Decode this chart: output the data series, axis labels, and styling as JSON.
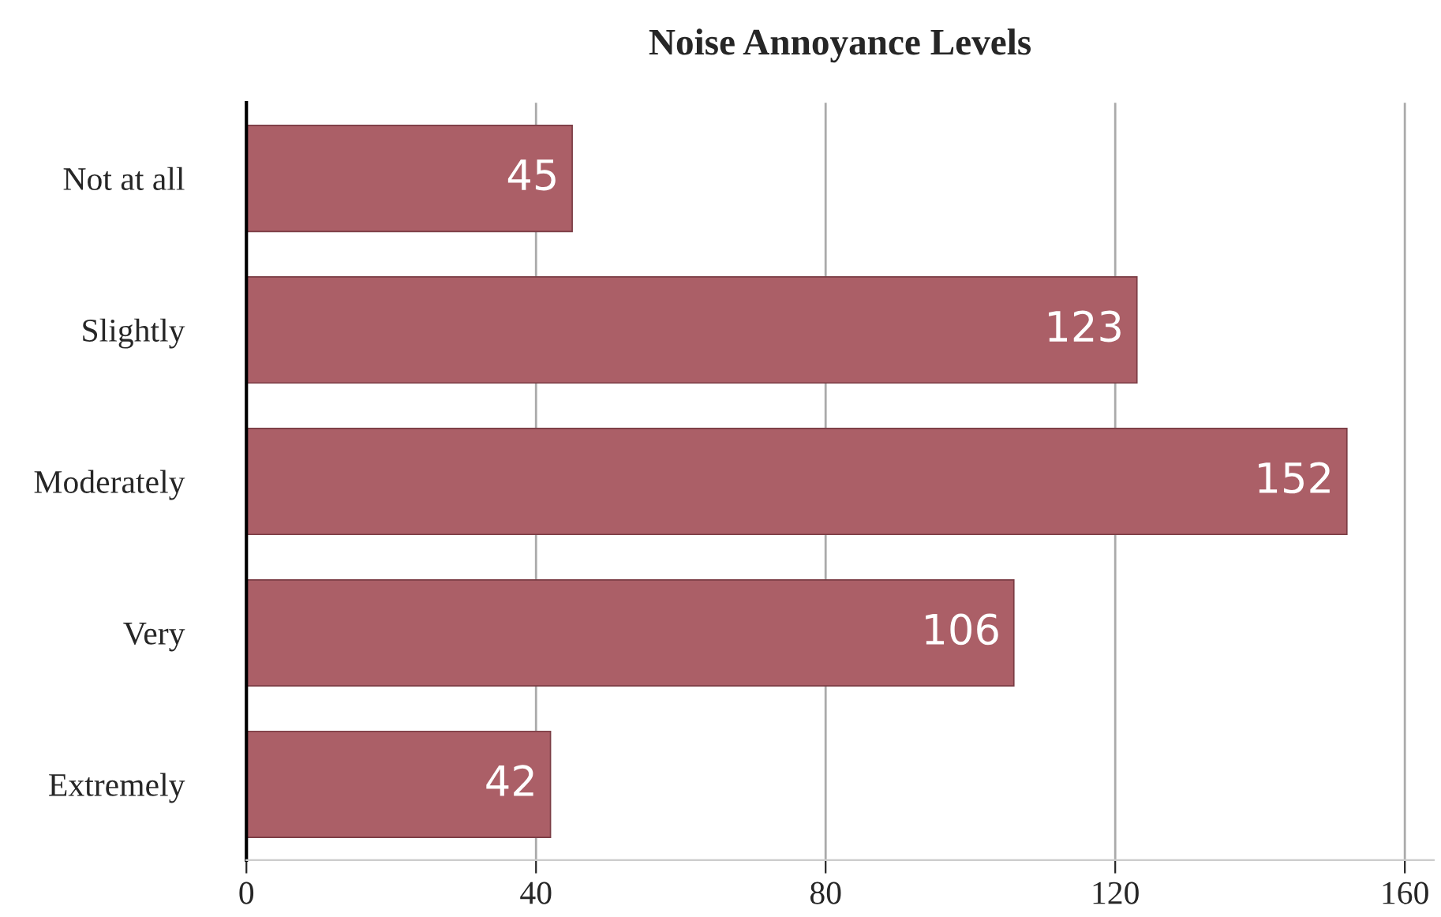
{
  "chart_data": {
    "type": "bar",
    "orientation": "horizontal",
    "title": "Noise Annoyance Levels",
    "categories": [
      "Not at all",
      "Slightly",
      "Moderately",
      "Very",
      "Extremely"
    ],
    "values": [
      45,
      123,
      152,
      106,
      42
    ],
    "color": "#ab5f67",
    "xlim": [
      0,
      164
    ],
    "xticks": [
      0,
      40,
      80,
      120,
      160
    ],
    "grid": "x",
    "data_labels": true,
    "legend": false
  }
}
